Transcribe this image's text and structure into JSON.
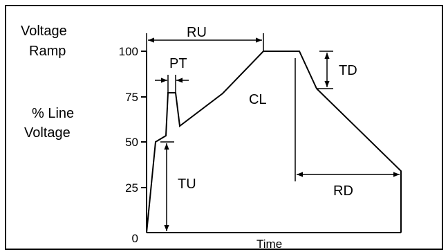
{
  "title_lines": [
    "Voltage",
    "Ramp"
  ],
  "ylabel_lines": [
    "% Line",
    "Voltage"
  ],
  "xlabel": "Time",
  "y_ticks": [
    "100",
    "75",
    "50",
    "25",
    "0"
  ],
  "labels": {
    "ru": "RU",
    "pt": "PT",
    "td": "TD",
    "cl": "CL",
    "tu": "TU",
    "rd": "RD"
  }
}
